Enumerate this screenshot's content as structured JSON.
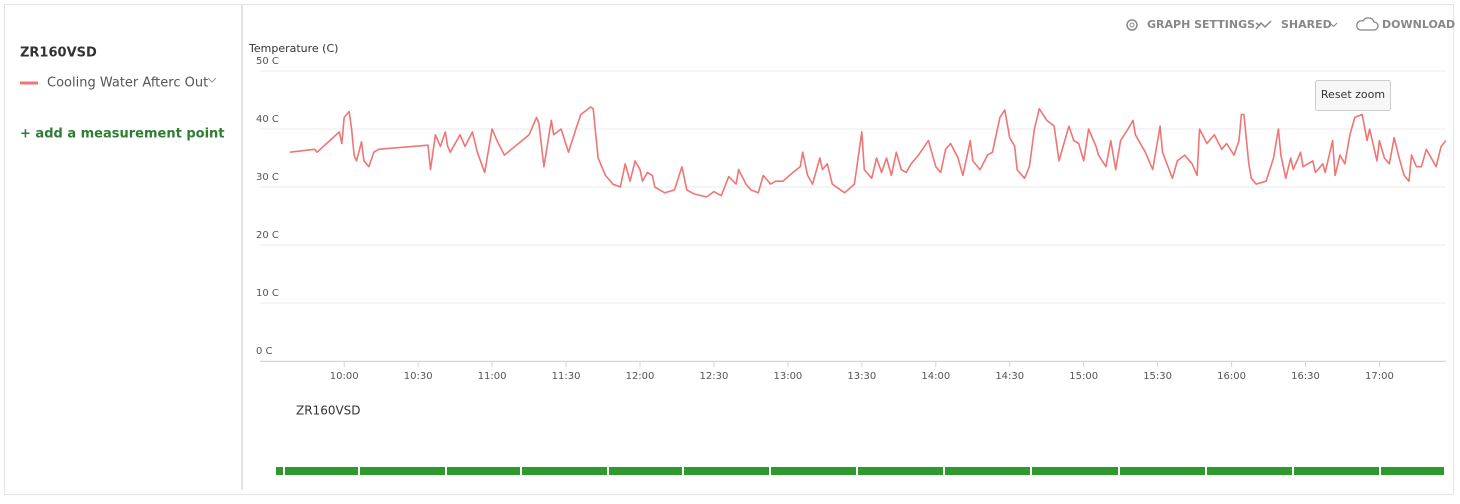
{
  "sidebar": {
    "device": "ZR160VSD",
    "add_link": "+ add a measurement point"
  },
  "toolbar": {
    "graph_settings": "GRAPH SETTINGS",
    "shared": "SHARED",
    "download": "DOWNLOAD"
  },
  "reset_zoom": "Reset zoom",
  "timeline": {
    "label": "ZR160VSD"
  },
  "chart_data": {
    "type": "line",
    "y_label": "Temperature (C)",
    "x": [
      "09:38",
      "09:48",
      "09:49",
      "09:58",
      "09:59",
      "10:00",
      "10:02",
      "10:03",
      "10:04",
      "10:05",
      "10:07",
      "10:08",
      "10:10",
      "10:12",
      "10:14",
      "10:34",
      "10:35",
      "10:37",
      "10:39",
      "10:41",
      "10:42",
      "10:43",
      "10:47",
      "10:49",
      "10:52",
      "10:54",
      "10:57",
      "11:00",
      "11:02",
      "11:05",
      "11:15",
      "11:18",
      "11:19",
      "11:21",
      "11:24",
      "11:25",
      "11:28",
      "11:31",
      "11:34",
      "11:36",
      "11:40",
      "11:41",
      "11:43",
      "11:46",
      "11:49",
      "11:52",
      "11:54",
      "11:56",
      "11:58",
      "12:00",
      "12:01",
      "12:03",
      "12:05",
      "12:06",
      "12:10",
      "12:14",
      "12:17",
      "12:19",
      "12:22",
      "12:27",
      "12:30",
      "12:33",
      "12:36",
      "12:39",
      "12:40",
      "12:43",
      "12:45",
      "12:48",
      "12:50",
      "12:53",
      "12:55",
      "12:58",
      "13:02",
      "13:05",
      "13:06",
      "13:08",
      "13:10",
      "13:13",
      "13:14",
      "13:16",
      "13:18",
      "13:23",
      "13:27",
      "13:30",
      "13:31",
      "13:34",
      "13:36",
      "13:38",
      "13:40",
      "13:42",
      "13:44",
      "13:46",
      "13:48",
      "13:50",
      "13:53",
      "13:57",
      "14:00",
      "14:02",
      "14:04",
      "14:06",
      "14:09",
      "14:11",
      "14:14",
      "14:15",
      "14:18",
      "14:21",
      "14:23",
      "14:26",
      "14:28",
      "14:30",
      "14:32",
      "14:33",
      "14:36",
      "14:38",
      "14:40",
      "14:42",
      "14:45",
      "14:48",
      "14:50",
      "14:54",
      "14:56",
      "14:58",
      "15:00",
      "15:02",
      "15:05",
      "15:06",
      "15:09",
      "15:11",
      "15:13",
      "15:15",
      "15:18",
      "15:20",
      "15:21",
      "15:25",
      "15:28",
      "15:31",
      "15:32",
      "15:36",
      "15:38",
      "15:41",
      "15:44",
      "15:46",
      "15:47",
      "15:50",
      "15:53",
      "15:56",
      "15:58",
      "16:01",
      "16:03",
      "16:04",
      "16:05",
      "16:07",
      "16:08",
      "16:10",
      "16:14",
      "16:17",
      "16:19",
      "16:20",
      "16:22",
      "16:24",
      "16:25",
      "16:28",
      "16:29",
      "16:33",
      "16:34",
      "16:37",
      "16:38",
      "16:41",
      "16:42",
      "16:44",
      "16:46",
      "16:48",
      "16:50",
      "16:53",
      "16:55",
      "16:56",
      "16:59",
      "17:00",
      "17:02",
      "17:04",
      "17:06",
      "17:08",
      "17:10",
      "17:12",
      "17:13",
      "17:15",
      "17:17",
      "17:19",
      "17:21",
      "17:23",
      "17:25",
      "17:27"
    ],
    "series": [
      {
        "name": "Cooling Water Afterc Out",
        "color": "#f07575",
        "values": [
          36.0,
          36.5,
          36.0,
          39.5,
          37.5,
          42.0,
          43.0,
          40.0,
          35.5,
          34.5,
          37.8,
          34.5,
          33.5,
          36.0,
          36.5,
          37.2,
          33.0,
          39.0,
          37.0,
          39.5,
          37.0,
          36.0,
          39.0,
          37.0,
          39.5,
          36.0,
          32.5,
          40.0,
          38.0,
          35.5,
          39.0,
          42.0,
          41.0,
          33.5,
          41.5,
          39.0,
          40.0,
          36.0,
          40.0,
          42.5,
          43.8,
          43.5,
          35.0,
          32.0,
          30.5,
          30.0,
          34.0,
          31.0,
          34.5,
          33.0,
          31.0,
          32.5,
          32.0,
          30.0,
          29.0,
          29.5,
          33.5,
          29.5,
          28.8,
          28.3,
          29.2,
          28.5,
          31.8,
          30.5,
          33.0,
          30.5,
          29.5,
          29.0,
          32.0,
          30.5,
          31.0,
          31.0,
          32.5,
          33.5,
          36.0,
          32.0,
          30.5,
          35.0,
          33.0,
          34.0,
          30.5,
          29.0,
          30.5,
          39.5,
          33.0,
          31.5,
          35.0,
          32.5,
          35.0,
          32.0,
          36.0,
          33.0,
          32.5,
          34.0,
          35.5,
          38.0,
          33.5,
          32.5,
          36.5,
          37.5,
          35.0,
          32.0,
          38.0,
          34.5,
          33.0,
          35.5,
          36.0,
          42.0,
          43.3,
          38.5,
          37.0,
          33.0,
          31.5,
          33.5,
          40.0,
          43.5,
          41.5,
          40.5,
          34.5,
          40.5,
          38.0,
          37.5,
          34.5,
          40.0,
          37.0,
          35.5,
          33.5,
          38.0,
          33.0,
          38.0,
          40.0,
          41.5,
          39.0,
          36.0,
          33.0,
          40.5,
          36.0,
          31.5,
          34.5,
          35.5,
          34.0,
          32.0,
          40.0,
          37.5,
          39.0,
          36.5,
          37.5,
          35.5,
          38.0,
          42.5,
          42.5,
          34.0,
          31.5,
          30.5,
          31.0,
          35.0,
          40.0,
          35.5,
          31.5,
          35.0,
          33.0,
          36.0,
          33.5,
          34.5,
          32.5,
          34.0,
          32.5,
          38.0,
          32.0,
          35.5,
          34.0,
          39.0,
          42.0,
          42.5,
          38.0,
          40.0,
          34.5,
          38.0,
          35.0,
          34.0,
          38.5,
          35.0,
          32.0,
          31.0,
          35.5,
          33.5,
          33.5,
          36.5,
          35.0,
          33.5,
          37.0,
          38.0
        ]
      }
    ],
    "xlim": [
      "09:38",
      "17:27"
    ],
    "xticks": [
      "10:00",
      "10:30",
      "11:00",
      "11:30",
      "12:00",
      "12:30",
      "13:00",
      "13:30",
      "14:00",
      "14:30",
      "15:00",
      "15:30",
      "16:00",
      "16:30",
      "17:00"
    ],
    "ylim": [
      0,
      50
    ],
    "yticks": [
      {
        "value": 0,
        "label": "0 C"
      },
      {
        "value": 10,
        "label": "10 C"
      },
      {
        "value": 20,
        "label": "20 C"
      },
      {
        "value": 30,
        "label": "30 C"
      },
      {
        "value": 40,
        "label": "40 C"
      },
      {
        "value": 50,
        "label": "50 C"
      }
    ],
    "grid": true
  }
}
